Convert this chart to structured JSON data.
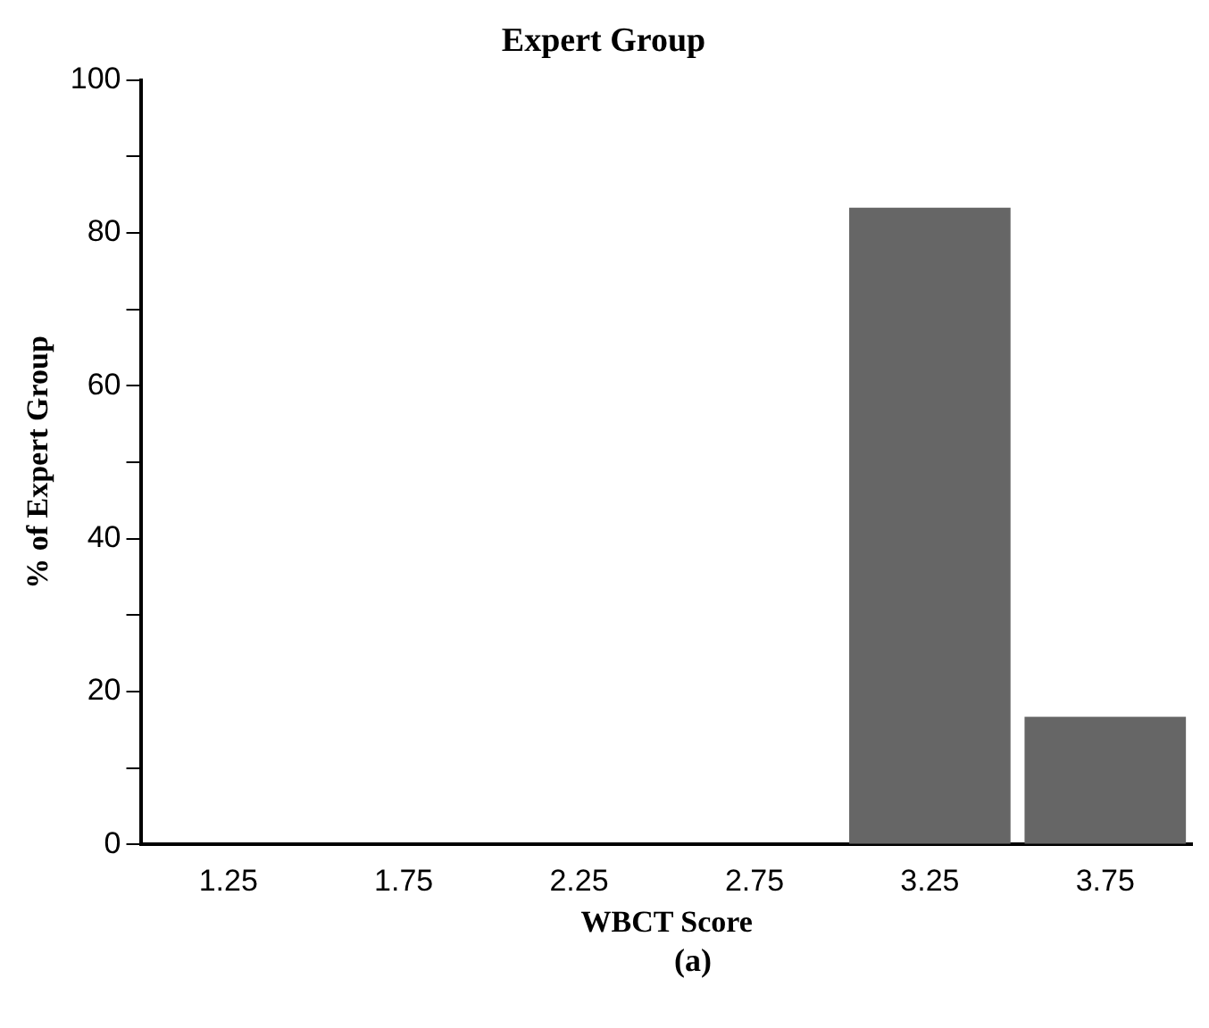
{
  "chart_data": {
    "type": "bar",
    "title": "Expert Group",
    "xlabel": "WBCT Score",
    "ylabel": "% of Expert Group",
    "annotations": [
      "(a)"
    ],
    "categories": [
      "1.25",
      "1.75",
      "2.25",
      "2.75",
      "3.25",
      "3.75"
    ],
    "values": [
      0,
      0,
      0,
      0,
      83.3,
      16.7
    ],
    "color": "#666666",
    "ylim": [
      0,
      100
    ],
    "yticks": [
      0,
      {
        "value": 10,
        "label": null
      },
      20,
      {
        "value": 30,
        "label": null
      },
      40,
      {
        "value": 50,
        "label": null
      },
      60,
      {
        "value": 70,
        "label": null
      },
      80,
      {
        "value": 90,
        "label": null
      },
      100
    ]
  }
}
